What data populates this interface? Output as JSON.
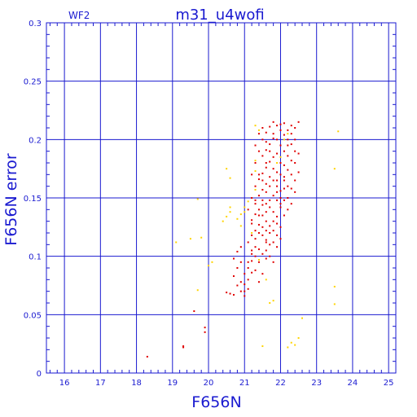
{
  "chart_data": {
    "type": "scatter",
    "title": "m31_u4wofi",
    "corner_label": "WF2",
    "xlabel": "F656N",
    "ylabel": "F656N error",
    "xlim": [
      15.5,
      25.2
    ],
    "ylim": [
      0,
      0.3
    ],
    "x_ticks": [
      16,
      17,
      18,
      19,
      20,
      21,
      22,
      23,
      24,
      25
    ],
    "y_ticks": [
      0,
      0.05,
      0.1,
      0.15,
      0.2,
      0.25,
      0.3
    ],
    "grid": true,
    "colors": {
      "axes": "#1a1ad0",
      "grid": "#1a1ad0",
      "primary": "#e00000",
      "secondary": "#ffd400"
    },
    "series": [
      {
        "color": "#e00000",
        "points": [
          [
            18.3,
            0.014
          ],
          [
            19.3,
            0.022
          ],
          [
            19.3,
            0.023
          ],
          [
            19.6,
            0.053
          ],
          [
            19.9,
            0.035
          ],
          [
            19.9,
            0.039
          ],
          [
            20.5,
            0.069
          ],
          [
            20.6,
            0.068
          ],
          [
            20.7,
            0.067
          ],
          [
            20.8,
            0.075
          ],
          [
            20.9,
            0.078
          ],
          [
            20.7,
            0.083
          ],
          [
            20.8,
            0.09
          ],
          [
            20.9,
            0.095
          ],
          [
            20.7,
            0.098
          ],
          [
            20.8,
            0.104
          ],
          [
            20.9,
            0.108
          ],
          [
            21.0,
            0.066
          ],
          [
            21.0,
            0.07
          ],
          [
            21.1,
            0.072
          ],
          [
            21.1,
            0.08
          ],
          [
            21.0,
            0.085
          ],
          [
            21.1,
            0.09
          ],
          [
            21.2,
            0.096
          ],
          [
            21.2,
            0.102
          ],
          [
            21.3,
            0.108
          ],
          [
            21.1,
            0.112
          ],
          [
            21.2,
            0.118
          ],
          [
            21.3,
            0.122
          ],
          [
            21.4,
            0.127
          ],
          [
            21.2,
            0.131
          ],
          [
            21.3,
            0.136
          ],
          [
            21.4,
            0.14
          ],
          [
            21.5,
            0.144
          ],
          [
            21.3,
            0.148
          ],
          [
            21.4,
            0.152
          ],
          [
            21.5,
            0.157
          ],
          [
            21.6,
            0.162
          ],
          [
            21.4,
            0.166
          ],
          [
            21.5,
            0.171
          ],
          [
            21.6,
            0.176
          ],
          [
            21.7,
            0.181
          ],
          [
            21.5,
            0.186
          ],
          [
            21.6,
            0.191
          ],
          [
            21.7,
            0.196
          ],
          [
            21.8,
            0.201
          ],
          [
            21.6,
            0.206
          ],
          [
            21.7,
            0.211
          ],
          [
            21.8,
            0.215
          ],
          [
            21.9,
            0.212
          ],
          [
            22.0,
            0.208
          ],
          [
            22.1,
            0.204
          ],
          [
            22.2,
            0.2
          ],
          [
            22.3,
            0.196
          ],
          [
            22.4,
            0.19
          ],
          [
            22.2,
            0.186
          ],
          [
            22.3,
            0.182
          ],
          [
            22.1,
            0.178
          ],
          [
            22.2,
            0.174
          ],
          [
            22.0,
            0.17
          ],
          [
            22.1,
            0.165
          ],
          [
            21.9,
            0.16
          ],
          [
            22.0,
            0.156
          ],
          [
            21.8,
            0.152
          ],
          [
            21.9,
            0.148
          ],
          [
            22.0,
            0.145
          ],
          [
            21.7,
            0.142
          ],
          [
            21.8,
            0.138
          ],
          [
            21.9,
            0.134
          ],
          [
            21.6,
            0.13
          ],
          [
            21.7,
            0.126
          ],
          [
            21.8,
            0.122
          ],
          [
            21.5,
            0.118
          ],
          [
            21.6,
            0.114
          ],
          [
            21.7,
            0.11
          ],
          [
            21.4,
            0.106
          ],
          [
            21.5,
            0.102
          ],
          [
            21.6,
            0.098
          ],
          [
            21.8,
            0.095
          ],
          [
            21.6,
            0.112
          ],
          [
            21.5,
            0.125
          ],
          [
            21.9,
            0.128
          ],
          [
            22.1,
            0.135
          ],
          [
            22.0,
            0.142
          ],
          [
            22.2,
            0.15
          ],
          [
            22.3,
            0.158
          ],
          [
            22.4,
            0.165
          ],
          [
            22.5,
            0.172
          ],
          [
            22.4,
            0.18
          ],
          [
            22.5,
            0.188
          ],
          [
            22.3,
            0.205
          ],
          [
            22.4,
            0.21
          ],
          [
            22.5,
            0.215
          ],
          [
            22.1,
            0.214
          ],
          [
            21.5,
            0.2
          ],
          [
            21.4,
            0.19
          ],
          [
            21.3,
            0.18
          ],
          [
            21.2,
            0.17
          ],
          [
            21.3,
            0.16
          ],
          [
            21.2,
            0.15
          ],
          [
            21.1,
            0.14
          ],
          [
            21.4,
            0.135
          ],
          [
            21.3,
            0.115
          ],
          [
            21.2,
            0.105
          ],
          [
            21.4,
            0.095
          ],
          [
            21.6,
            0.105
          ],
          [
            21.7,
            0.12
          ],
          [
            21.9,
            0.118
          ],
          [
            22.0,
            0.125
          ],
          [
            21.8,
            0.13
          ],
          [
            22.1,
            0.148
          ],
          [
            21.9,
            0.155
          ],
          [
            21.8,
            0.165
          ],
          [
            21.9,
            0.172
          ],
          [
            21.7,
            0.168
          ],
          [
            21.6,
            0.155
          ],
          [
            21.5,
            0.148
          ],
          [
            21.7,
            0.148
          ],
          [
            22.0,
            0.18
          ],
          [
            21.9,
            0.188
          ],
          [
            22.0,
            0.195
          ],
          [
            21.8,
            0.185
          ],
          [
            21.7,
            0.19
          ],
          [
            21.6,
            0.18
          ],
          [
            22.2,
            0.16
          ],
          [
            22.3,
            0.17
          ],
          [
            22.1,
            0.19
          ],
          [
            22.2,
            0.195
          ],
          [
            21.5,
            0.21
          ],
          [
            21.4,
            0.205
          ],
          [
            21.6,
            0.198
          ],
          [
            21.3,
            0.195
          ],
          [
            21.4,
            0.17
          ],
          [
            21.5,
            0.165
          ],
          [
            21.3,
            0.145
          ],
          [
            21.6,
            0.138
          ],
          [
            21.7,
            0.1
          ],
          [
            21.5,
            0.085
          ],
          [
            21.4,
            0.078
          ],
          [
            21.3,
            0.088
          ],
          [
            21.1,
            0.095
          ],
          [
            21.2,
            0.086
          ],
          [
            21.0,
            0.076
          ],
          [
            20.9,
            0.07
          ],
          [
            22.0,
            0.15
          ],
          [
            22.0,
            0.115
          ],
          [
            21.9,
            0.108
          ],
          [
            22.2,
            0.14
          ],
          [
            22.3,
            0.145
          ],
          [
            22.4,
            0.155
          ],
          [
            22.1,
            0.168
          ],
          [
            21.8,
            0.205
          ],
          [
            22.0,
            0.213
          ],
          [
            21.9,
            0.2
          ],
          [
            21.8,
            0.175
          ],
          [
            21.7,
            0.16
          ],
          [
            21.6,
            0.145
          ],
          [
            21.5,
            0.135
          ],
          [
            21.4,
            0.12
          ],
          [
            21.3,
            0.1
          ],
          [
            21.2,
            0.128
          ],
          [
            21.6,
            0.122
          ],
          [
            21.8,
            0.112
          ],
          [
            22.1,
            0.158
          ],
          [
            22.4,
            0.2
          ],
          [
            22.3,
            0.212
          ],
          [
            22.2,
            0.208
          ],
          [
            21.9,
            0.165
          ]
        ]
      },
      {
        "color": "#ffd400",
        "points": [
          [
            19.1,
            0.112
          ],
          [
            19.5,
            0.115
          ],
          [
            19.8,
            0.116
          ],
          [
            19.7,
            0.071
          ],
          [
            19.7,
            0.149
          ],
          [
            20.0,
            0.092
          ],
          [
            20.1,
            0.095
          ],
          [
            20.4,
            0.13
          ],
          [
            20.5,
            0.134
          ],
          [
            20.6,
            0.138
          ],
          [
            20.6,
            0.142
          ],
          [
            20.6,
            0.167
          ],
          [
            20.5,
            0.175
          ],
          [
            20.8,
            0.132
          ],
          [
            20.9,
            0.136
          ],
          [
            20.9,
            0.126
          ],
          [
            21.0,
            0.138
          ],
          [
            21.0,
            0.142
          ],
          [
            21.1,
            0.147
          ],
          [
            21.2,
            0.15
          ],
          [
            21.3,
            0.157
          ],
          [
            21.3,
            0.173
          ],
          [
            21.3,
            0.182
          ],
          [
            21.4,
            0.208
          ],
          [
            21.3,
            0.212
          ],
          [
            21.4,
            0.097
          ],
          [
            21.5,
            0.023
          ],
          [
            21.7,
            0.06
          ],
          [
            21.8,
            0.062
          ],
          [
            21.9,
            0.18
          ],
          [
            22.0,
            0.185
          ],
          [
            22.1,
            0.2
          ],
          [
            22.2,
            0.205
          ],
          [
            22.2,
            0.022
          ],
          [
            22.3,
            0.026
          ],
          [
            22.4,
            0.024
          ],
          [
            22.5,
            0.03
          ],
          [
            22.6,
            0.047
          ],
          [
            23.5,
            0.074
          ],
          [
            23.5,
            0.059
          ],
          [
            23.5,
            0.175
          ],
          [
            23.6,
            0.207
          ],
          [
            21.2,
            0.12
          ],
          [
            21.6,
            0.08
          ]
        ]
      }
    ]
  }
}
